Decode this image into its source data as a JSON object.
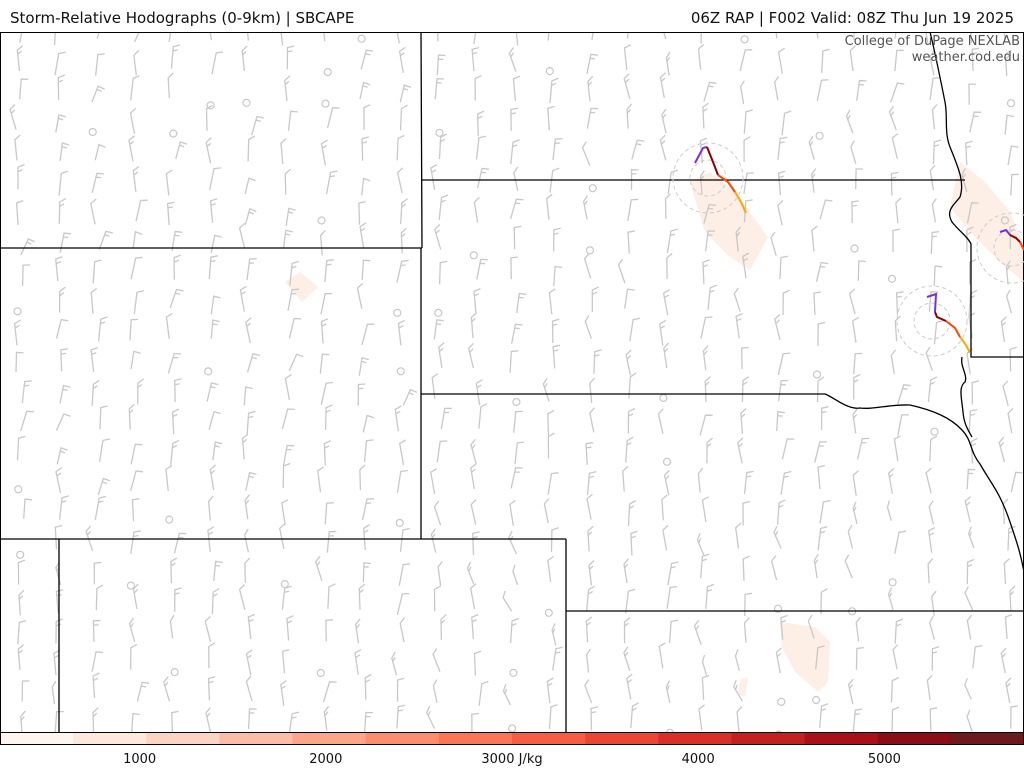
{
  "header": {
    "product_title": "Storm-Relative Hodographs (0-9km) | SBCAPE",
    "run_info": "06Z RAP | F002 Valid: 08Z Thu Jun 19 2025"
  },
  "credit": {
    "org": "College of DuPage NEXLAB",
    "site": "weather.cod.edu"
  },
  "colorbar": {
    "variable": "SBCAPE",
    "unit": "J/kg",
    "range": [
      250,
      5750
    ],
    "ticks": [
      {
        "value": 1000,
        "label": "1000"
      },
      {
        "value": 2000,
        "label": "2000"
      },
      {
        "value": 3000,
        "label": "3000 J/kg"
      },
      {
        "value": 4000,
        "label": "4000"
      },
      {
        "value": 5000,
        "label": "5000"
      }
    ],
    "colors": [
      "#fff5ef",
      "#fee7dc",
      "#fdd4c2",
      "#fcbda4",
      "#fca588",
      "#fc8e6e",
      "#fb7656",
      "#f65e44",
      "#eb4634",
      "#d92f27",
      "#c3211f",
      "#a91119",
      "#8b0d15",
      "#6d1a1f"
    ]
  },
  "map": {
    "wind_barb_color": "#c8c8c8",
    "border_color": "#000000",
    "hodograph_colors": [
      "#7b2fd6",
      "#8b0000",
      "#ff4500",
      "#ffa500"
    ],
    "cape_shading_color": "#fdeee6"
  }
}
